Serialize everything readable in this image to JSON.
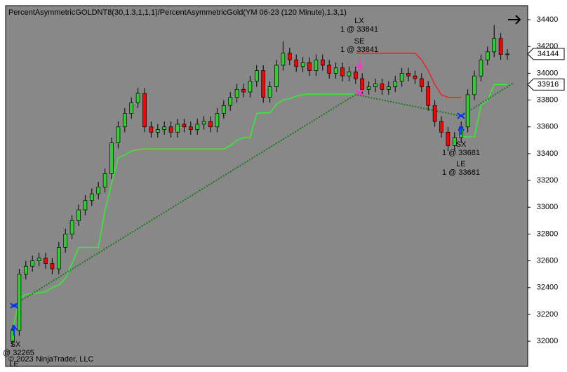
{
  "chart_data": {
    "type": "candlestick",
    "title": "PercentAsymmetricGOLDNT8(30,1.3,1,1,1)/PercentAsymmetricGold(YM 06-23 (120 Minute),1.3,1)",
    "copyright": "© 2023 NinjaTrader, LLC",
    "up_color": "#32cd32",
    "down_color": "#ff0000",
    "open": [
      32000,
      32080,
      32500,
      32560,
      32600,
      32620,
      32580,
      32540,
      32700,
      32800,
      32900,
      32980,
      33050,
      33100,
      33150,
      33250,
      33480,
      33600,
      33700,
      33780,
      33850,
      33600,
      33560,
      33580,
      33600,
      33560,
      33620,
      33600,
      33580,
      33620,
      33640,
      33600,
      33700,
      33760,
      33820,
      33880,
      33860,
      33940,
      34020,
      33820,
      33900,
      34060,
      34150,
      34100,
      34050,
      34080,
      34020,
      34100,
      34060,
      34000,
      34040,
      33980,
      34010,
      33960,
      33880,
      33900,
      33920,
      33880,
      33900,
      33940,
      34000,
      33980,
      33960,
      33900,
      33760,
      33640,
      33560,
      33460,
      33520,
      33600,
      33840,
      33980,
      34100,
      34160,
      34260,
      34140
    ],
    "high": [
      32120,
      32540,
      32600,
      32640,
      32660,
      32660,
      32620,
      32740,
      32840,
      32940,
      33020,
      33090,
      33140,
      33190,
      33290,
      33520,
      33640,
      33740,
      33820,
      33890,
      33890,
      33640,
      33620,
      33640,
      33640,
      33660,
      33660,
      33640,
      33660,
      33680,
      33680,
      33740,
      33800,
      33860,
      33920,
      33920,
      33980,
      34060,
      34060,
      33940,
      34100,
      34240,
      34190,
      34140,
      34120,
      34120,
      34140,
      34140,
      34100,
      34080,
      34080,
      34050,
      34050,
      34000,
      33940,
      33960,
      33960,
      33940,
      33980,
      34040,
      34040,
      34020,
      34000,
      33940,
      33800,
      33680,
      33600,
      33560,
      33640,
      33880,
      34020,
      34140,
      34200,
      34360,
      34300,
      34180
    ],
    "low": [
      31960,
      32040,
      32460,
      32520,
      32560,
      32540,
      32500,
      32500,
      32660,
      32760,
      32860,
      32940,
      33010,
      33060,
      33110,
      33210,
      33440,
      33560,
      33660,
      33740,
      33560,
      33520,
      33520,
      33540,
      33520,
      33520,
      33560,
      33540,
      33540,
      33580,
      33560,
      33560,
      33660,
      33720,
      33780,
      33820,
      33820,
      33900,
      33780,
      33780,
      33860,
      34020,
      34060,
      34010,
      34010,
      33980,
      33980,
      34020,
      33960,
      33960,
      33940,
      33940,
      33920,
      33840,
      33840,
      33860,
      33840,
      33840,
      33860,
      33900,
      33940,
      33920,
      33860,
      33720,
      33600,
      33520,
      33420,
      33420,
      33480,
      33560,
      33800,
      33940,
      34060,
      34120,
      34100,
      34100
    ],
    "close": [
      32080,
      32500,
      32560,
      32600,
      32620,
      32580,
      32540,
      32700,
      32800,
      32900,
      32980,
      33050,
      33100,
      33150,
      33250,
      33480,
      33600,
      33700,
      33780,
      33850,
      33600,
      33560,
      33580,
      33600,
      33560,
      33620,
      33600,
      33580,
      33620,
      33640,
      33600,
      33700,
      33760,
      33820,
      33880,
      33860,
      33940,
      34020,
      33820,
      33900,
      34060,
      34150,
      34100,
      34050,
      34080,
      34020,
      34100,
      34060,
      34000,
      34040,
      33980,
      34010,
      33960,
      33880,
      33900,
      33920,
      33880,
      33900,
      33940,
      34000,
      33980,
      33960,
      33900,
      33760,
      33640,
      33560,
      33460,
      33520,
      33600,
      33840,
      33980,
      34100,
      34160,
      34260,
      34140,
      34144
    ],
    "long_stop": {
      "color": "#33ee33",
      "values": [
        32080,
        32320,
        32350,
        32355,
        32360,
        32370,
        32400,
        32420,
        32470,
        32580,
        32700,
        32700,
        32700,
        32700,
        32975,
        33180,
        33370,
        33390,
        33420,
        33430,
        33435,
        33435,
        33435,
        33435,
        33435,
        33435,
        33435,
        33435,
        33435,
        33435,
        33435,
        33435,
        33435,
        33460,
        33500,
        33520,
        33520,
        33700,
        33705,
        33705,
        33770,
        33800,
        33810,
        33830,
        33840,
        33845,
        33845,
        33845,
        33845,
        33845,
        33845,
        33845,
        33845,
        null,
        null,
        null,
        null,
        null,
        null,
        null,
        null,
        null,
        null,
        null,
        null,
        null,
        null,
        null,
        33525,
        33525,
        33525,
        33760,
        33800,
        33916,
        33916,
        33916
      ]
    },
    "short_stop": {
      "color": "#ee2222",
      "values": [
        null,
        null,
        null,
        null,
        null,
        null,
        null,
        null,
        null,
        null,
        null,
        null,
        null,
        null,
        null,
        null,
        null,
        null,
        null,
        null,
        null,
        null,
        null,
        null,
        null,
        null,
        null,
        null,
        null,
        null,
        null,
        null,
        null,
        null,
        null,
        null,
        null,
        null,
        null,
        null,
        null,
        null,
        null,
        null,
        null,
        null,
        null,
        null,
        null,
        null,
        null,
        null,
        34150,
        34150,
        34150,
        34150,
        34150,
        34150,
        34150,
        34150,
        34150,
        34150,
        34100,
        34020,
        33916,
        33840,
        33820,
        33820,
        33820,
        null,
        null,
        null,
        null,
        null,
        null,
        null
      ]
    },
    "trade_line": {
      "color": "#1a7a1a",
      "x": [
        0,
        52,
        68,
        76
      ],
      "values": [
        32265,
        33841,
        33681,
        33930
      ]
    },
    "last_price": 34144,
    "stop_price": 33916,
    "annotations": [
      {
        "label": "LX",
        "detail": "1 @ 33841"
      },
      {
        "label": "SE",
        "detail": "1 @ 33841"
      },
      {
        "label": "SX",
        "detail": "1 @ 33681"
      },
      {
        "label": "LE",
        "detail": "1 @ 33681"
      },
      {
        "label": "SX",
        "detail": "@ 32265"
      },
      {
        "label": "LE"
      }
    ],
    "ylim": [
      31812,
      34505
    ],
    "yticks": [
      32000,
      32200,
      32400,
      32600,
      32800,
      33000,
      33200,
      33400,
      33600,
      33800,
      34000,
      34200,
      34400
    ]
  }
}
